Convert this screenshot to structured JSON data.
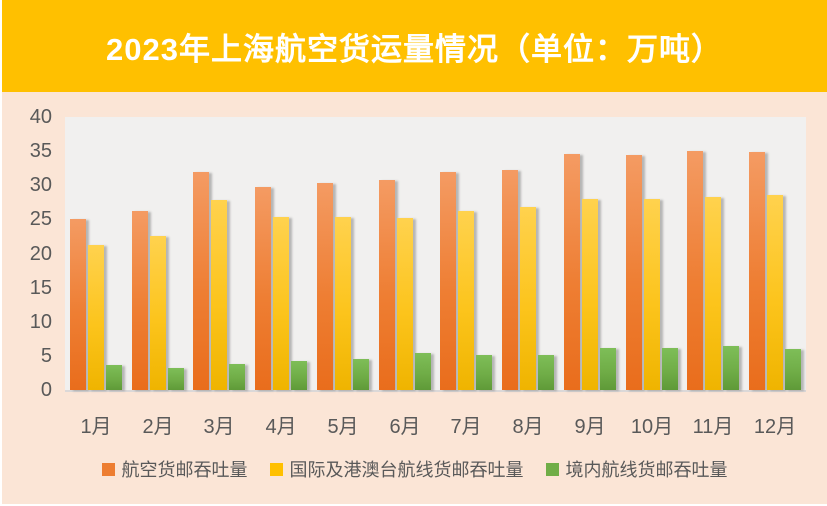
{
  "title": "2023年上海航空货运量情况（单位：万吨）",
  "chart_data": {
    "type": "bar",
    "title": "2023年上海航空货运量情况（单位：万吨）",
    "unit": "万吨",
    "categories": [
      "1月",
      "2月",
      "3月",
      "4月",
      "5月",
      "6月",
      "7月",
      "8月",
      "9月",
      "10月",
      "11月",
      "12月"
    ],
    "series": [
      {
        "name": "航空货邮吞吐量",
        "color": "#ED7D31",
        "values": [
          25.1,
          26.2,
          31.9,
          29.8,
          30.4,
          30.7,
          31.9,
          32.3,
          34.6,
          34.5,
          35.0,
          34.8
        ]
      },
      {
        "name": "国际及港澳台航线货邮吞吐量",
        "color": "#FFC000",
        "values": [
          21.2,
          22.6,
          27.8,
          25.4,
          25.4,
          25.2,
          26.3,
          26.8,
          28.0,
          28.0,
          28.3,
          28.6
        ]
      },
      {
        "name": "境内航线货邮吞吐量",
        "color": "#70AD47",
        "values": [
          3.6,
          3.2,
          3.8,
          4.2,
          4.6,
          5.4,
          5.1,
          5.1,
          6.2,
          6.1,
          6.5,
          6.0
        ]
      }
    ],
    "xlabel": "",
    "ylabel": "",
    "ylim": [
      0,
      40
    ],
    "yticks": [
      0,
      5,
      10,
      15,
      20,
      25,
      30,
      35,
      40
    ],
    "grid": false,
    "legend_position": "bottom"
  },
  "colors": {
    "banner_background": "#FFC000",
    "page_background": "#FBE5D6",
    "plot_background": "#F1F0EF",
    "axis_text": "#595959",
    "title_text": "#FFFFFF"
  }
}
